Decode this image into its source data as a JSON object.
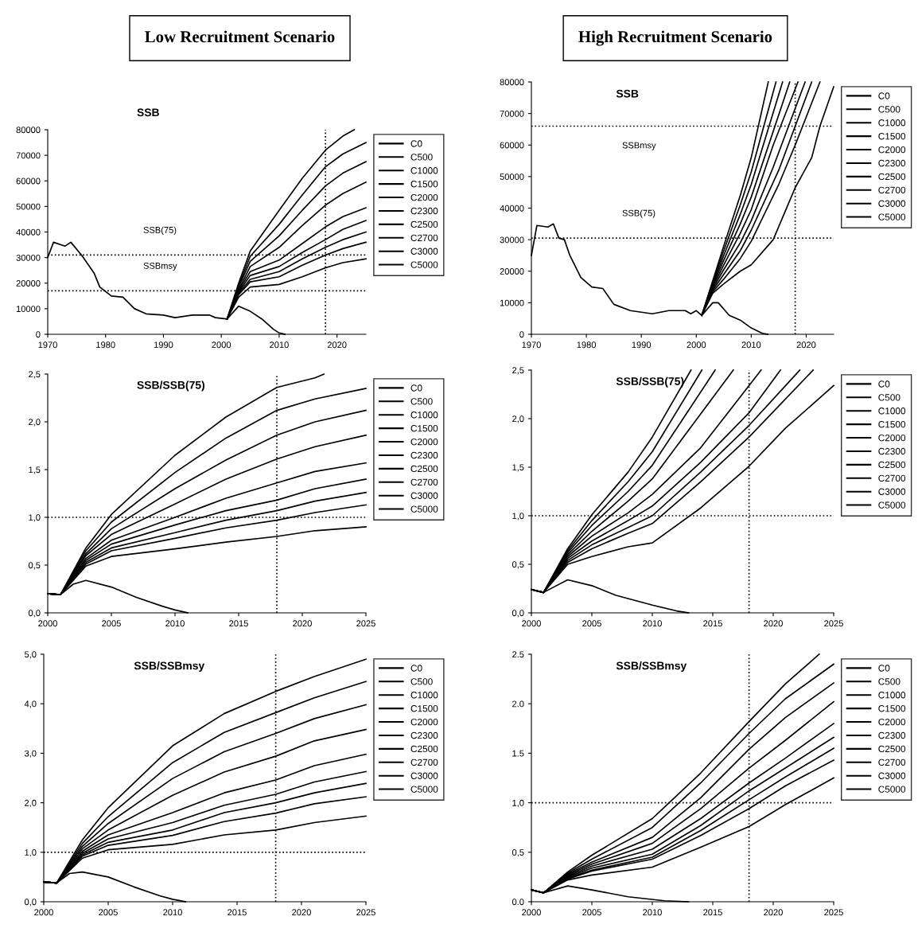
{
  "chart_data": [
    {
      "type": "line",
      "title": "Low Recruitment Scenario",
      "subtitle": "SSB",
      "xlim": [
        1970,
        2025
      ],
      "xticks": [
        1970,
        1980,
        1990,
        2000,
        2010,
        2020
      ],
      "ylim": [
        0,
        80000
      ],
      "yticks": [
        0,
        10000,
        20000,
        30000,
        40000,
        50000,
        60000,
        70000,
        80000
      ],
      "grid": false,
      "legend": "right",
      "line_style": "solid",
      "marker": "none",
      "ref_lines": [
        {
          "axis": "y",
          "value": 31000,
          "label": "SSB(75)",
          "line_style": "dotted",
          "color": "#000000"
        },
        {
          "axis": "y",
          "value": 17000,
          "label": "SSBmsy",
          "line_style": "dotted",
          "color": "#000000"
        },
        {
          "axis": "x",
          "value": 2018,
          "line_style": "dotted",
          "color": "#000000"
        }
      ],
      "series": [
        {
          "color": "#000000",
          "x": [
            1970,
            1971,
            1973,
            1974,
            1976,
            1978,
            1979,
            1981,
            1983,
            1985,
            1987,
            1990,
            1992,
            1995,
            1998,
            1999,
            2001
          ],
          "values": [
            30000,
            36000,
            34500,
            36000,
            30500,
            24000,
            18500,
            15000,
            14500,
            10000,
            8000,
            7500,
            6500,
            7500,
            7500,
            6500,
            6000
          ]
        },
        {
          "name": "C0",
          "color": "#000000",
          "x": [
            2001,
            2003,
            2005,
            2010,
            2014,
            2018,
            2021,
            2023
          ],
          "values": [
            6000,
            20000,
            32500,
            48500,
            61000,
            72000,
            77500,
            80000
          ]
        },
        {
          "name": "C500",
          "color": "#000000",
          "x": [
            2001,
            2003,
            2005,
            2010,
            2014,
            2018,
            2021,
            2025
          ],
          "values": [
            6000,
            19000,
            30500,
            43000,
            54500,
            65500,
            70500,
            75000
          ]
        },
        {
          "name": "C1000",
          "color": "#000000",
          "x": [
            2001,
            2003,
            2005,
            2010,
            2014,
            2018,
            2021,
            2025
          ],
          "values": [
            6000,
            18500,
            28500,
            38500,
            48500,
            58000,
            63000,
            67500
          ]
        },
        {
          "name": "C1500",
          "color": "#000000",
          "x": [
            2001,
            2003,
            2005,
            2010,
            2014,
            2018,
            2021,
            2025
          ],
          "values": [
            6000,
            17500,
            26500,
            34000,
            42500,
            50500,
            55000,
            59500
          ]
        },
        {
          "name": "C2000",
          "color": "#000000",
          "x": [
            2001,
            2003,
            2005,
            2010,
            2014,
            2018,
            2021,
            2025
          ],
          "values": [
            6000,
            17000,
            24500,
            29000,
            35500,
            42000,
            46000,
            49500
          ]
        },
        {
          "name": "C2300",
          "color": "#000000",
          "x": [
            2001,
            2003,
            2005,
            2010,
            2014,
            2018,
            2021,
            2025
          ],
          "values": [
            6000,
            16500,
            23000,
            26500,
            32000,
            37000,
            41000,
            44500
          ]
        },
        {
          "name": "C2500",
          "color": "#000000",
          "x": [
            2001,
            2003,
            2005,
            2010,
            2014,
            2018,
            2021,
            2025
          ],
          "values": [
            6000,
            16000,
            21500,
            24500,
            29500,
            34000,
            37000,
            40000
          ]
        },
        {
          "name": "C2700",
          "color": "#000000",
          "x": [
            2001,
            2003,
            2005,
            2010,
            2014,
            2018,
            2021,
            2025
          ],
          "values": [
            6000,
            15500,
            20500,
            22500,
            27000,
            31000,
            33500,
            36000
          ]
        },
        {
          "name": "C3000",
          "color": "#000000",
          "x": [
            2001,
            2003,
            2005,
            2010,
            2014,
            2018,
            2021,
            2025
          ],
          "values": [
            6000,
            14500,
            18500,
            19500,
            22500,
            26000,
            28000,
            29500
          ]
        },
        {
          "name": "C5000",
          "color": "#000000",
          "x": [
            2001,
            2003,
            2005,
            2007,
            2009,
            2010,
            2011
          ],
          "values": [
            6000,
            11000,
            9000,
            6000,
            2000,
            500,
            0
          ]
        }
      ]
    },
    {
      "type": "line",
      "title": "High Recruitment Scenario",
      "subtitle": "SSB",
      "xlim": [
        1970,
        2025
      ],
      "xticks": [
        1970,
        1980,
        1990,
        2000,
        2010,
        2020
      ],
      "ylim": [
        0,
        80000
      ],
      "yticks": [
        0,
        10000,
        20000,
        30000,
        40000,
        50000,
        60000,
        70000,
        80000
      ],
      "grid": false,
      "legend": "right",
      "line_style": "solid",
      "marker": "none",
      "ref_lines": [
        {
          "axis": "y",
          "value": 66000,
          "label": "SSBmsy",
          "line_style": "dotted",
          "color": "#000000"
        },
        {
          "axis": "y",
          "value": 30500,
          "label": "SSB(75)",
          "line_style": "dotted",
          "color": "#000000"
        },
        {
          "axis": "x",
          "value": 2018,
          "line_style": "dotted",
          "color": "#000000"
        }
      ],
      "series": [
        {
          "color": "#000000",
          "x": [
            1970,
            1971,
            1973,
            1974,
            1975,
            1976,
            1977,
            1979,
            1981,
            1983,
            1985,
            1988,
            1992,
            1995,
            1998,
            1999,
            2000,
            2001
          ],
          "values": [
            25000,
            34500,
            34000,
            35000,
            30500,
            30000,
            25000,
            18000,
            15000,
            14500,
            9500,
            7500,
            6500,
            7500,
            7500,
            6500,
            7500,
            6000
          ]
        },
        {
          "name": "C0",
          "color": "#000000",
          "x": [
            2001,
            2003,
            2005,
            2008,
            2010,
            2013.1
          ],
          "values": [
            6000,
            17000,
            28000,
            44000,
            56000,
            80000
          ]
        },
        {
          "name": "C500",
          "color": "#000000",
          "x": [
            2001,
            2003,
            2005,
            2008,
            2010,
            2014.5
          ],
          "values": [
            6000,
            16500,
            26500,
            41000,
            51500,
            80000
          ]
        },
        {
          "name": "C1000",
          "color": "#000000",
          "x": [
            2001,
            2003,
            2005,
            2008,
            2010,
            2015.7
          ],
          "values": [
            6000,
            16000,
            25000,
            38000,
            47500,
            80000
          ]
        },
        {
          "name": "C1500",
          "color": "#000000",
          "x": [
            2001,
            2003,
            2005,
            2008,
            2010,
            2017
          ],
          "values": [
            6000,
            15500,
            23500,
            35000,
            43500,
            80000
          ]
        },
        {
          "name": "C2000",
          "color": "#000000",
          "x": [
            2001,
            2003,
            2005,
            2008,
            2010,
            2014,
            2018.5
          ],
          "values": [
            6000,
            15000,
            22000,
            32000,
            39500,
            60000,
            80000
          ]
        },
        {
          "name": "C2300",
          "color": "#000000",
          "x": [
            2001,
            2003,
            2005,
            2008,
            2010,
            2014,
            2019.8
          ],
          "values": [
            6000,
            14500,
            20500,
            29000,
            36000,
            53000,
            80000
          ]
        },
        {
          "name": "C2500",
          "color": "#000000",
          "x": [
            2001,
            2003,
            2005,
            2008,
            2010,
            2015,
            2021
          ],
          "values": [
            6000,
            14000,
            19000,
            26500,
            33000,
            52000,
            80000
          ]
        },
        {
          "name": "C2700",
          "color": "#000000",
          "x": [
            2001,
            2003,
            2005,
            2008,
            2010,
            2015,
            2018,
            2022.5
          ],
          "values": [
            6000,
            13500,
            17500,
            24000,
            29500,
            47500,
            60000,
            80000
          ]
        },
        {
          "name": "C3000",
          "color": "#000000",
          "x": [
            2001,
            2003,
            2005,
            2008,
            2010,
            2014,
            2018,
            2021,
            2022.5,
            2025
          ],
          "values": [
            6000,
            13000,
            16000,
            20000,
            22000,
            30000,
            46500,
            56000,
            66000,
            78500
          ]
        },
        {
          "name": "C5000",
          "color": "#000000",
          "x": [
            2001,
            2003,
            2004,
            2006,
            2008,
            2010,
            2012,
            2013
          ],
          "values": [
            6000,
            10000,
            10000,
            6000,
            4500,
            2000,
            300,
            0
          ]
        }
      ]
    },
    {
      "type": "line",
      "title": "SSB/SSB(75)",
      "xlim": [
        2000,
        2025
      ],
      "xticks": [
        2000,
        2005,
        2010,
        2015,
        2020,
        2025
      ],
      "ylim": [
        0,
        2.5
      ],
      "yticks": [
        {
          "value": 0,
          "label": "0,0"
        },
        {
          "value": 0.5,
          "label": "0,5"
        },
        {
          "value": 1,
          "label": "1,0"
        },
        {
          "value": 1.5,
          "label": "1,5"
        },
        {
          "value": 2,
          "label": "2,0"
        },
        {
          "value": 2.5,
          "label": "2,5"
        }
      ],
      "grid": false,
      "legend": "right",
      "line_style": "solid",
      "marker": "none",
      "ref_lines": [
        {
          "axis": "y",
          "value": 1,
          "line_style": "dotted",
          "color": "#000000"
        },
        {
          "axis": "x",
          "value": 2018,
          "line_style": "dotted",
          "color": "#000000"
        }
      ],
      "series": [
        {
          "name": "C0",
          "color": "#000000",
          "x": [
            2000,
            2001,
            2003,
            2005,
            2010,
            2014,
            2018,
            2021,
            2021.7
          ],
          "values": [
            0.2,
            0.19,
            0.68,
            1.03,
            1.65,
            2.05,
            2.36,
            2.46,
            2.5
          ]
        },
        {
          "name": "C500",
          "color": "#000000",
          "x": [
            2000,
            2001,
            2003,
            2005,
            2010,
            2014,
            2018,
            2021,
            2025
          ],
          "values": [
            0.2,
            0.19,
            0.65,
            0.95,
            1.47,
            1.83,
            2.12,
            2.24,
            2.35
          ]
        },
        {
          "name": "C1000",
          "color": "#000000",
          "x": [
            2000,
            2001,
            2003,
            2005,
            2010,
            2014,
            2018,
            2021,
            2025
          ],
          "values": [
            0.2,
            0.19,
            0.62,
            0.88,
            1.3,
            1.6,
            1.86,
            2.0,
            2.12
          ]
        },
        {
          "name": "C1500",
          "color": "#000000",
          "x": [
            2000,
            2001,
            2003,
            2005,
            2010,
            2014,
            2018,
            2021,
            2025
          ],
          "values": [
            0.2,
            0.19,
            0.6,
            0.82,
            1.14,
            1.4,
            1.61,
            1.74,
            1.86
          ]
        },
        {
          "name": "C2000",
          "color": "#000000",
          "x": [
            2000,
            2001,
            2003,
            2005,
            2010,
            2014,
            2018,
            2021,
            2025
          ],
          "values": [
            0.2,
            0.19,
            0.57,
            0.76,
            1.0,
            1.2,
            1.36,
            1.48,
            1.57
          ]
        },
        {
          "name": "C2300",
          "color": "#000000",
          "x": [
            2000,
            2001,
            2003,
            2005,
            2010,
            2014,
            2018,
            2021,
            2025
          ],
          "values": [
            0.2,
            0.19,
            0.55,
            0.72,
            0.92,
            1.07,
            1.18,
            1.3,
            1.4
          ]
        },
        {
          "name": "C2500",
          "color": "#000000",
          "x": [
            2000,
            2001,
            2003,
            2005,
            2010,
            2014,
            2018,
            2021,
            2025
          ],
          "values": [
            0.2,
            0.19,
            0.53,
            0.68,
            0.84,
            0.97,
            1.07,
            1.17,
            1.26
          ]
        },
        {
          "name": "C2700",
          "color": "#000000",
          "x": [
            2000,
            2001,
            2003,
            2005,
            2010,
            2014,
            2018,
            2021,
            2025
          ],
          "values": [
            0.2,
            0.19,
            0.51,
            0.65,
            0.78,
            0.89,
            0.97,
            1.05,
            1.13
          ]
        },
        {
          "name": "C3000",
          "color": "#000000",
          "x": [
            2000,
            2001,
            2003,
            2005,
            2010,
            2014,
            2018,
            2021,
            2025
          ],
          "values": [
            0.2,
            0.19,
            0.49,
            0.59,
            0.67,
            0.74,
            0.8,
            0.86,
            0.9
          ]
        },
        {
          "name": "C5000",
          "color": "#000000",
          "x": [
            2000,
            2001,
            2002,
            2003,
            2005,
            2007,
            2009,
            2010,
            2011
          ],
          "values": [
            0.2,
            0.19,
            0.3,
            0.34,
            0.27,
            0.16,
            0.07,
            0.03,
            0
          ]
        }
      ]
    },
    {
      "type": "line",
      "title": "SSB/SSB(75)",
      "xlim": [
        2000,
        2025
      ],
      "xticks": [
        2000,
        2005,
        2010,
        2015,
        2020,
        2025
      ],
      "ylim": [
        0,
        2.5
      ],
      "yticks": [
        {
          "value": 0,
          "label": "0,0"
        },
        {
          "value": 0.5,
          "label": "0,5"
        },
        {
          "value": 1,
          "label": "1,0"
        },
        {
          "value": 1.5,
          "label": "1,5"
        },
        {
          "value": 2,
          "label": "2,0"
        },
        {
          "value": 2.5,
          "label": "2,5"
        }
      ],
      "grid": false,
      "legend": "right",
      "line_style": "solid",
      "marker": "none",
      "ref_lines": [
        {
          "axis": "y",
          "value": 1,
          "line_style": "dotted",
          "color": "#000000"
        },
        {
          "axis": "x",
          "value": 2018,
          "line_style": "dotted",
          "color": "#000000"
        }
      ],
      "series": [
        {
          "name": "C0",
          "color": "#000000",
          "x": [
            2000,
            2001,
            2003,
            2005,
            2008,
            2010,
            2013.2
          ],
          "values": [
            0.24,
            0.21,
            0.66,
            1.01,
            1.45,
            1.81,
            2.5
          ]
        },
        {
          "name": "C500",
          "color": "#000000",
          "x": [
            2000,
            2001,
            2003,
            2005,
            2008,
            2010,
            2014.1
          ],
          "values": [
            0.24,
            0.21,
            0.64,
            0.95,
            1.35,
            1.66,
            2.5
          ]
        },
        {
          "name": "C1000",
          "color": "#000000",
          "x": [
            2000,
            2001,
            2003,
            2005,
            2008,
            2010,
            2015.2
          ],
          "values": [
            0.24,
            0.21,
            0.62,
            0.9,
            1.25,
            1.52,
            2.5
          ]
        },
        {
          "name": "C1500",
          "color": "#000000",
          "x": [
            2000,
            2001,
            2003,
            2005,
            2008,
            2010,
            2016.7
          ],
          "values": [
            0.24,
            0.21,
            0.6,
            0.84,
            1.15,
            1.38,
            2.5
          ]
        },
        {
          "name": "C2000",
          "color": "#000000",
          "x": [
            2000,
            2001,
            2003,
            2005,
            2008,
            2010,
            2014,
            2019.0
          ],
          "values": [
            0.24,
            0.21,
            0.58,
            0.79,
            1.03,
            1.22,
            1.7,
            2.5
          ]
        },
        {
          "name": "C2300",
          "color": "#000000",
          "x": [
            2000,
            2001,
            2003,
            2005,
            2008,
            2010,
            2014,
            2018,
            2020.6
          ],
          "values": [
            0.24,
            0.21,
            0.56,
            0.74,
            0.95,
            1.1,
            1.55,
            2.06,
            2.5
          ]
        },
        {
          "name": "C2500",
          "color": "#000000",
          "x": [
            2000,
            2001,
            2003,
            2005,
            2008,
            2010,
            2014,
            2018,
            2022.2
          ],
          "values": [
            0.24,
            0.21,
            0.54,
            0.7,
            0.88,
            1.0,
            1.45,
            1.93,
            2.5
          ]
        },
        {
          "name": "C2700",
          "color": "#000000",
          "x": [
            2000,
            2001,
            2003,
            2005,
            2008,
            2010,
            2014,
            2018,
            2023.3
          ],
          "values": [
            0.24,
            0.21,
            0.52,
            0.66,
            0.82,
            0.92,
            1.35,
            1.81,
            2.5
          ]
        },
        {
          "name": "C3000",
          "color": "#000000",
          "x": [
            2000,
            2001,
            2003,
            2005,
            2008,
            2010,
            2014,
            2018,
            2021,
            2025
          ],
          "values": [
            0.24,
            0.21,
            0.5,
            0.58,
            0.68,
            0.72,
            1.08,
            1.51,
            1.9,
            2.34
          ]
        },
        {
          "name": "C5000",
          "color": "#000000",
          "x": [
            2000,
            2001,
            2003,
            2005,
            2007,
            2010,
            2012,
            2013
          ],
          "values": [
            0.24,
            0.21,
            0.34,
            0.28,
            0.18,
            0.08,
            0.02,
            0
          ]
        }
      ]
    },
    {
      "type": "line",
      "title": "SSB/SSBmsy",
      "xlim": [
        2000,
        2025
      ],
      "xticks": [
        2000,
        2005,
        2010,
        2015,
        2020,
        2025
      ],
      "ylim": [
        0,
        5
      ],
      "yticks": [
        {
          "value": 0,
          "label": "0,0"
        },
        {
          "value": 1,
          "label": "1,0"
        },
        {
          "value": 2,
          "label": "2,0"
        },
        {
          "value": 3,
          "label": "3,0"
        },
        {
          "value": 4,
          "label": "4,0"
        },
        {
          "value": 5,
          "label": "5,0"
        }
      ],
      "grid": false,
      "legend": "right",
      "line_style": "solid",
      "marker": "none",
      "ref_lines": [
        {
          "axis": "y",
          "value": 1,
          "line_style": "dotted",
          "color": "#000000"
        },
        {
          "axis": "x",
          "value": 2018,
          "line_style": "dotted",
          "color": "#000000"
        }
      ],
      "series": [
        {
          "name": "C0",
          "color": "#000000",
          "x": [
            2000,
            2001,
            2003,
            2005,
            2010,
            2014,
            2018,
            2021,
            2025
          ],
          "values": [
            0.4,
            0.38,
            1.25,
            1.9,
            3.15,
            3.8,
            4.25,
            4.55,
            4.9
          ]
        },
        {
          "name": "C500",
          "color": "#000000",
          "x": [
            2000,
            2001,
            2003,
            2005,
            2010,
            2014,
            2018,
            2021,
            2025
          ],
          "values": [
            0.4,
            0.38,
            1.18,
            1.72,
            2.81,
            3.42,
            3.82,
            4.12,
            4.45
          ]
        },
        {
          "name": "C1000",
          "color": "#000000",
          "x": [
            2000,
            2001,
            2003,
            2005,
            2010,
            2014,
            2018,
            2021,
            2025
          ],
          "values": [
            0.4,
            0.38,
            1.12,
            1.58,
            2.49,
            3.03,
            3.4,
            3.7,
            3.98
          ]
        },
        {
          "name": "C1500",
          "color": "#000000",
          "x": [
            2000,
            2001,
            2003,
            2005,
            2010,
            2014,
            2018,
            2021,
            2025
          ],
          "values": [
            0.4,
            0.38,
            1.07,
            1.45,
            2.15,
            2.62,
            2.94,
            3.25,
            3.48
          ]
        },
        {
          "name": "C2000",
          "color": "#000000",
          "x": [
            2000,
            2001,
            2003,
            2005,
            2010,
            2014,
            2018,
            2021,
            2025
          ],
          "values": [
            0.4,
            0.38,
            1.02,
            1.35,
            1.8,
            2.2,
            2.46,
            2.75,
            2.98
          ]
        },
        {
          "name": "C2300",
          "color": "#000000",
          "x": [
            2000,
            2001,
            2003,
            2005,
            2010,
            2014,
            2018,
            2021,
            2025
          ],
          "values": [
            0.4,
            0.38,
            0.98,
            1.27,
            1.6,
            1.95,
            2.17,
            2.42,
            2.63
          ]
        },
        {
          "name": "C2500",
          "color": "#000000",
          "x": [
            2000,
            2001,
            2003,
            2005,
            2010,
            2014,
            2018,
            2021,
            2025
          ],
          "values": [
            0.4,
            0.38,
            0.95,
            1.2,
            1.45,
            1.8,
            2.0,
            2.2,
            2.39
          ]
        },
        {
          "name": "C2700",
          "color": "#000000",
          "x": [
            2000,
            2001,
            2003,
            2005,
            2010,
            2014,
            2018,
            2021,
            2025
          ],
          "values": [
            0.4,
            0.38,
            0.92,
            1.14,
            1.34,
            1.62,
            1.79,
            1.98,
            2.12
          ]
        },
        {
          "name": "C3000",
          "color": "#000000",
          "x": [
            2000,
            2001,
            2003,
            2005,
            2010,
            2014,
            2018,
            2021,
            2025
          ],
          "values": [
            0.4,
            0.38,
            0.88,
            1.05,
            1.16,
            1.35,
            1.45,
            1.6,
            1.73
          ]
        },
        {
          "name": "C5000",
          "color": "#000000",
          "x": [
            2000,
            2001,
            2002,
            2003,
            2005,
            2007,
            2009,
            2010,
            2011
          ],
          "values": [
            0.4,
            0.38,
            0.57,
            0.6,
            0.5,
            0.3,
            0.12,
            0.05,
            0
          ]
        }
      ]
    },
    {
      "type": "line",
      "title": "SSB/SSBmsy",
      "xlim": [
        2000,
        2025
      ],
      "xticks": [
        2000,
        2005,
        2010,
        2015,
        2020,
        2025
      ],
      "ylim": [
        0,
        2.5
      ],
      "yticks": [
        {
          "value": 0,
          "label": "0.0"
        },
        {
          "value": 0.5,
          "label": "0,5"
        },
        {
          "value": 1,
          "label": "1,0"
        },
        {
          "value": 1.5,
          "label": "1.5"
        },
        {
          "value": 2,
          "label": "2.0"
        },
        {
          "value": 2.5,
          "label": "2.5"
        }
      ],
      "grid": false,
      "legend": "right",
      "line_style": "solid",
      "marker": "none",
      "ref_lines": [
        {
          "axis": "y",
          "value": 1,
          "line_style": "dotted",
          "color": "#000000"
        },
        {
          "axis": "x",
          "value": 2018,
          "line_style": "dotted",
          "color": "#000000"
        }
      ],
      "series": [
        {
          "name": "C0",
          "color": "#000000",
          "x": [
            2000,
            2001,
            2003,
            2005,
            2010,
            2014,
            2018,
            2021,
            2023.8
          ],
          "values": [
            0.12,
            0.09,
            0.3,
            0.47,
            0.84,
            1.3,
            1.82,
            2.2,
            2.5
          ]
        },
        {
          "name": "C500",
          "color": "#000000",
          "x": [
            2000,
            2001,
            2003,
            2005,
            2010,
            2014,
            2018,
            2021,
            2025
          ],
          "values": [
            0.12,
            0.09,
            0.29,
            0.43,
            0.75,
            1.2,
            1.7,
            2.05,
            2.4
          ]
        },
        {
          "name": "C1000",
          "color": "#000000",
          "x": [
            2000,
            2001,
            2003,
            2005,
            2010,
            2014,
            2018,
            2021,
            2025
          ],
          "values": [
            0.12,
            0.09,
            0.28,
            0.4,
            0.65,
            1.05,
            1.54,
            1.86,
            2.21
          ]
        },
        {
          "name": "C1500",
          "color": "#000000",
          "x": [
            2000,
            2001,
            2003,
            2005,
            2010,
            2014,
            2018,
            2021,
            2025
          ],
          "values": [
            0.12,
            0.09,
            0.27,
            0.38,
            0.59,
            0.94,
            1.35,
            1.63,
            2.02
          ]
        },
        {
          "name": "C2000",
          "color": "#000000",
          "x": [
            2000,
            2001,
            2003,
            2005,
            2010,
            2014,
            2018,
            2021,
            2025
          ],
          "values": [
            0.12,
            0.09,
            0.26,
            0.36,
            0.53,
            0.84,
            1.2,
            1.45,
            1.8
          ]
        },
        {
          "name": "C2300",
          "color": "#000000",
          "x": [
            2000,
            2001,
            2003,
            2005,
            2010,
            2014,
            2018,
            2021,
            2025
          ],
          "values": [
            0.12,
            0.09,
            0.25,
            0.34,
            0.48,
            0.77,
            1.12,
            1.35,
            1.66
          ]
        },
        {
          "name": "C2500",
          "color": "#000000",
          "x": [
            2000,
            2001,
            2003,
            2005,
            2010,
            2014,
            2018,
            2021,
            2025
          ],
          "values": [
            0.12,
            0.09,
            0.24,
            0.32,
            0.45,
            0.72,
            1.03,
            1.26,
            1.55
          ]
        },
        {
          "name": "C2700",
          "color": "#000000",
          "x": [
            2000,
            2001,
            2003,
            2005,
            2010,
            2014,
            2018,
            2021,
            2025
          ],
          "values": [
            0.12,
            0.09,
            0.23,
            0.31,
            0.43,
            0.67,
            0.94,
            1.17,
            1.43
          ]
        },
        {
          "name": "C3000",
          "color": "#000000",
          "x": [
            2000,
            2001,
            2003,
            2005,
            2010,
            2014,
            2018,
            2021,
            2025
          ],
          "values": [
            0.12,
            0.09,
            0.22,
            0.27,
            0.35,
            0.55,
            0.76,
            0.98,
            1.25
          ]
        },
        {
          "name": "C5000",
          "color": "#000000",
          "x": [
            2000,
            2001,
            2003,
            2005,
            2008,
            2011,
            2013
          ],
          "values": [
            0.12,
            0.09,
            0.16,
            0.12,
            0.05,
            0.01,
            0
          ]
        }
      ]
    }
  ]
}
